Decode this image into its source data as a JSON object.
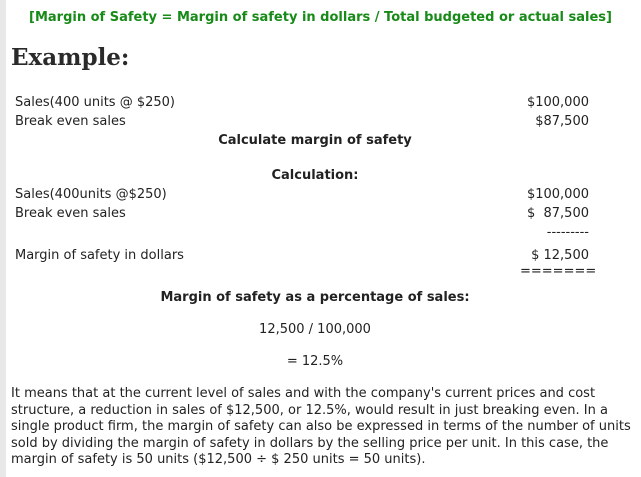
{
  "formula": "[Margin of Safety = Margin of safety in dollars / Total budgeted or actual sales]",
  "example_heading": "Example:",
  "given": {
    "sales_label": "Sales(400 units @ $250)",
    "sales_value": "$100,000",
    "break_even_label": "Break even sales",
    "break_even_value": "$87,500"
  },
  "task": "Calculate margin of safety",
  "calculation_heading": "Calculation:",
  "calc": {
    "sales_label": "Sales(400units @$250)",
    "sales_value": "$100,000",
    "break_even_label": "Break even sales",
    "break_even_value": "$  87,500",
    "dash_rule": "---------",
    "mos_label": "Margin of safety in dollars",
    "mos_value": "$ 12,500",
    "double_rule": "======="
  },
  "percentage_heading": "Margin of safety as a percentage of sales:",
  "percentage_formula": "12,500 / 100,000",
  "percentage_result": "= 12.5%",
  "explanation": "It means that at the current level of sales and with the company's current prices and cost structure, a reduction in sales of $12,500, or 12.5%, would result in just breaking even. In a single product firm, the margin of safety can also be expressed in terms of the number of units sold by dividing the margin of safety in dollars by the selling price per unit. In this case, the margin of safety is 50 units ($12,500 ÷ $ 250 units = 50 units)."
}
